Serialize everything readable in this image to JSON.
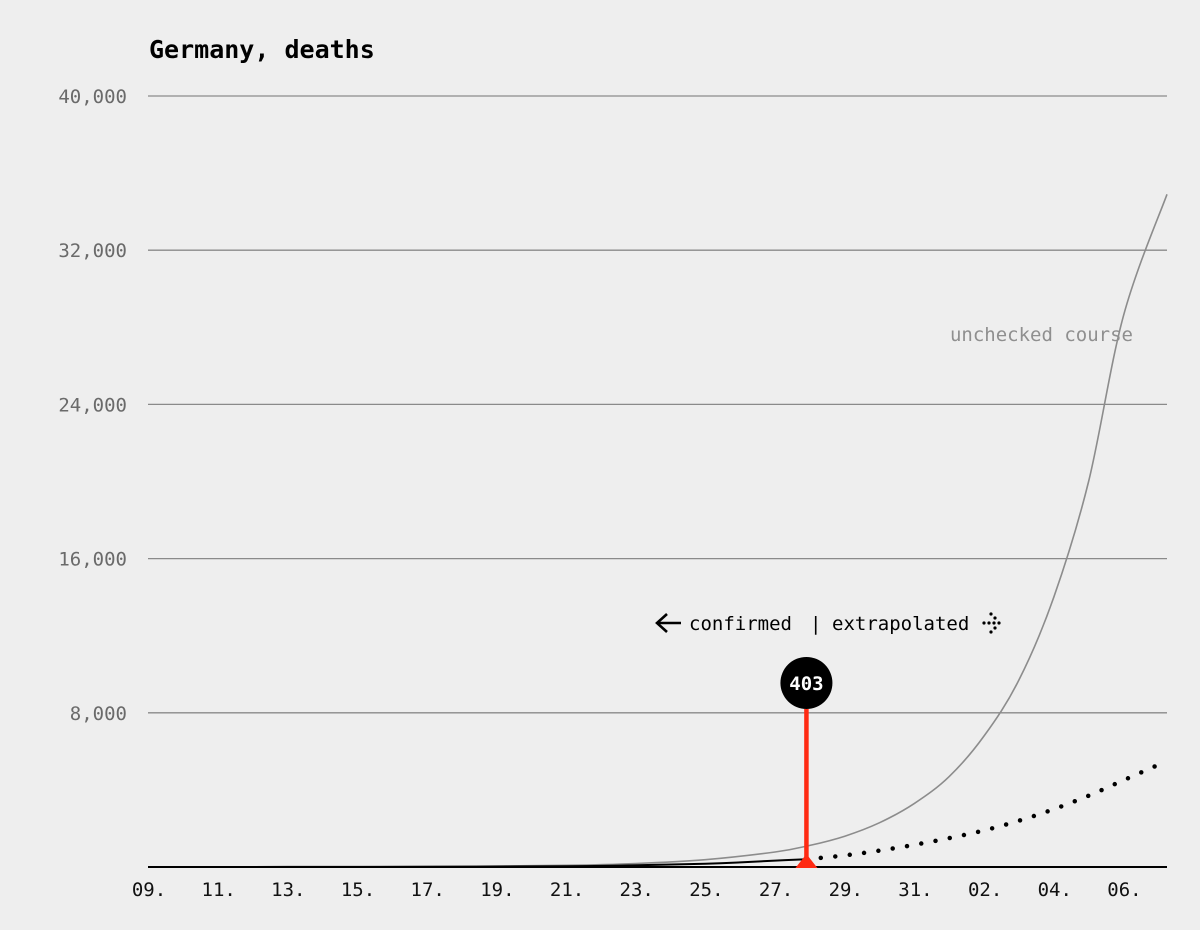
{
  "chart_data": {
    "type": "line",
    "title": "Germany, deaths",
    "ylim": [
      0,
      40000
    ],
    "y_ticks": [
      {
        "value": 8000,
        "label": "8,000"
      },
      {
        "value": 16000,
        "label": "16,000"
      },
      {
        "value": 24000,
        "label": "24,000"
      },
      {
        "value": 32000,
        "label": "32,000"
      },
      {
        "value": 40000,
        "label": "40,000"
      }
    ],
    "x_range_day_index": [
      0,
      29.25
    ],
    "x_ticks": [
      {
        "day": 0,
        "label": "09."
      },
      {
        "day": 2,
        "label": "11."
      },
      {
        "day": 4,
        "label": "13."
      },
      {
        "day": 6,
        "label": "15."
      },
      {
        "day": 8,
        "label": "17."
      },
      {
        "day": 10,
        "label": "19."
      },
      {
        "day": 12,
        "label": "21."
      },
      {
        "day": 14,
        "label": "23."
      },
      {
        "day": 16,
        "label": "25."
      },
      {
        "day": 18,
        "label": "27."
      },
      {
        "day": 20,
        "label": "29."
      },
      {
        "day": 22,
        "label": "31."
      },
      {
        "day": 24,
        "label": "02."
      },
      {
        "day": 26,
        "label": "04."
      },
      {
        "day": 28,
        "label": "06."
      }
    ],
    "grid": true,
    "series": [
      {
        "name": "unchecked course",
        "style": "thin-gray",
        "color": "#8c8c8c",
        "points": [
          [
            0,
            1
          ],
          [
            4,
            6
          ],
          [
            8,
            22
          ],
          [
            12,
            90
          ],
          [
            14,
            180
          ],
          [
            16,
            380
          ],
          [
            18,
            780
          ],
          [
            19,
            1120
          ],
          [
            20,
            1600
          ],
          [
            21,
            2300
          ],
          [
            22,
            3300
          ],
          [
            23,
            4700
          ],
          [
            24,
            6800
          ],
          [
            25,
            9700
          ],
          [
            26,
            14000
          ],
          [
            27,
            20000
          ],
          [
            28,
            28600
          ],
          [
            29.25,
            34900
          ]
        ]
      },
      {
        "name": "confirmed",
        "style": "solid-black",
        "color": "#000000",
        "points": [
          [
            0,
            0
          ],
          [
            4,
            4
          ],
          [
            8,
            12
          ],
          [
            12,
            40
          ],
          [
            14,
            90
          ],
          [
            16,
            170
          ],
          [
            17,
            240
          ],
          [
            18,
            330
          ],
          [
            18.9,
            403
          ]
        ]
      },
      {
        "name": "extrapolated",
        "style": "dotted-black",
        "color": "#000000",
        "points": [
          [
            18.9,
            403
          ],
          [
            20,
            600
          ],
          [
            21,
            850
          ],
          [
            22,
            1150
          ],
          [
            23,
            1500
          ],
          [
            24,
            1900
          ],
          [
            25,
            2400
          ],
          [
            26,
            3000
          ],
          [
            27,
            3700
          ],
          [
            28,
            4500
          ],
          [
            29.25,
            5500
          ]
        ]
      }
    ],
    "marker": {
      "day": 18.9,
      "value": 403,
      "label": "403",
      "color": "#ff2a12",
      "line_top_value": 8200
    },
    "divider_label": {
      "left": "confirmed",
      "separator": "|",
      "right": "extrapolated"
    },
    "annotation": {
      "text": "unchecked course",
      "anchor": "right"
    }
  }
}
